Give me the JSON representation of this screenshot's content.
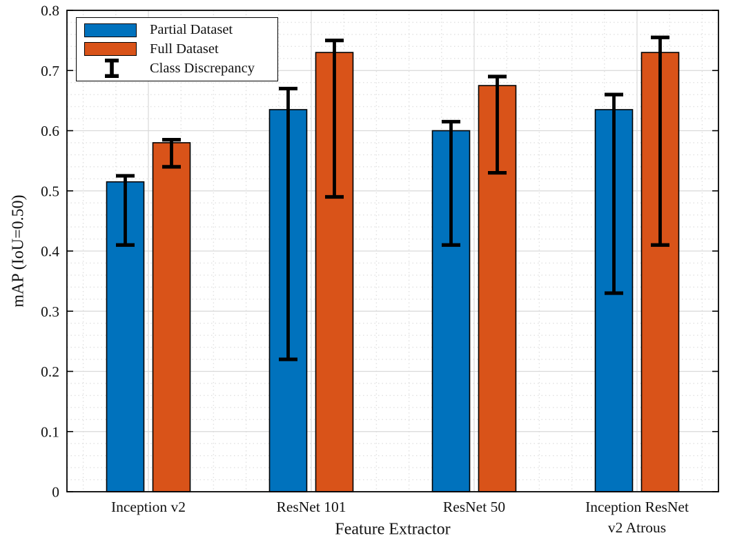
{
  "figure": {
    "background": "#ffffff",
    "axis_color": "#000000",
    "text_color": "#111111",
    "major_grid_color": "#d9d9d9",
    "minor_grid_color": "#e0e0e0"
  },
  "chart_data": {
    "type": "bar",
    "title": "",
    "xlabel": "Feature Extractor",
    "ylabel": "mAP (IoU=0.50)",
    "categories": [
      "Inception v2",
      "ResNet 101",
      "ResNet 50",
      "Inception ResNet\nv2 Atrous"
    ],
    "series": [
      {
        "name": "Partial Dataset",
        "color": "#0072BD",
        "values": [
          0.515,
          0.635,
          0.6,
          0.635
        ],
        "error_low": [
          0.41,
          0.22,
          0.41,
          0.33
        ],
        "error_high": [
          0.525,
          0.67,
          0.615,
          0.66
        ]
      },
      {
        "name": "Full Dataset",
        "color": "#D95319",
        "values": [
          0.58,
          0.73,
          0.675,
          0.73
        ],
        "error_low": [
          0.54,
          0.49,
          0.53,
          0.41
        ],
        "error_high": [
          0.585,
          0.75,
          0.69,
          0.755
        ]
      }
    ],
    "error_legend": {
      "name": "Class Discrepancy",
      "color": "#000000"
    },
    "ylim": [
      0,
      0.8
    ],
    "yticks": [
      0,
      0.1,
      0.2,
      0.3,
      0.4,
      0.5,
      0.6,
      0.7,
      0.8
    ],
    "ytick_labels": [
      "0",
      "0.1",
      "0.2",
      "0.3",
      "0.4",
      "0.5",
      "0.6",
      "0.7",
      "0.8"
    ],
    "xlim": [
      0.5,
      4.5
    ],
    "grid": {
      "major": true,
      "minor": true,
      "y_minor_step": 0.02,
      "x_minor_step": 0.2
    },
    "legend_position": "top-left"
  }
}
